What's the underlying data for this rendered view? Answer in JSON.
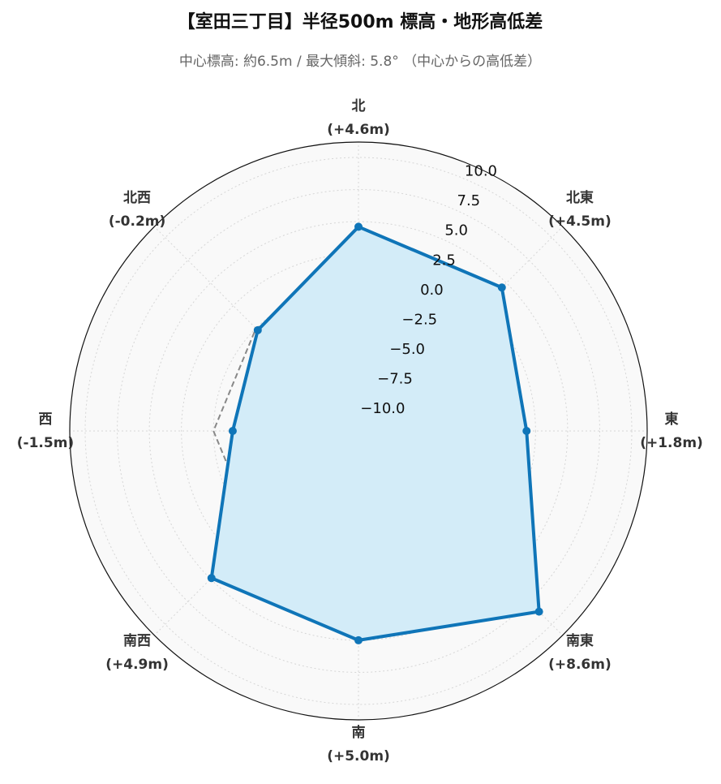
{
  "chart_data": {
    "type": "radar",
    "title": "【室田三丁目】半径500m 標高・地形高低差",
    "subtitle": "中心標高: 約6.5m / 最大傾斜: 5.8°  （中心からの高低差）",
    "categories": [
      "北",
      "北東",
      "東",
      "南東",
      "南",
      "南西",
      "西",
      "北西"
    ],
    "series": [
      {
        "color": "#0f75b8",
        "fill": "#d3ecf8",
        "values": [
          4.6,
          4.5,
          1.8,
          8.6,
          5.0,
          4.9,
          -1.5,
          -0.2
        ],
        "value_labels": [
          "(+4.6m)",
          "(+4.5m)",
          "(+1.8m)",
          "(+8.6m)",
          "(+5.0m)",
          "(+4.9m)",
          "(-1.5m)",
          "(-0.2m)"
        ]
      },
      {
        "color": "#888888",
        "dashed": true,
        "values": [
          0,
          0,
          0,
          0,
          0,
          0,
          0,
          0
        ]
      }
    ],
    "ylim": [
      -11.3,
      11.2
    ],
    "yticks": [
      {
        "value": -10,
        "label": "−10.0"
      },
      {
        "value": -7.5,
        "label": "−7.5"
      },
      {
        "value": -5,
        "label": "−5.0"
      },
      {
        "value": -2.5,
        "label": "−2.5"
      },
      {
        "value": 0,
        "label": "0.0"
      },
      {
        "value": 2.5,
        "label": "2.5"
      },
      {
        "value": 5,
        "label": "5.0"
      },
      {
        "value": 7.5,
        "label": "7.5"
      },
      {
        "value": 10,
        "label": "10.0"
      }
    ],
    "grid": true
  }
}
